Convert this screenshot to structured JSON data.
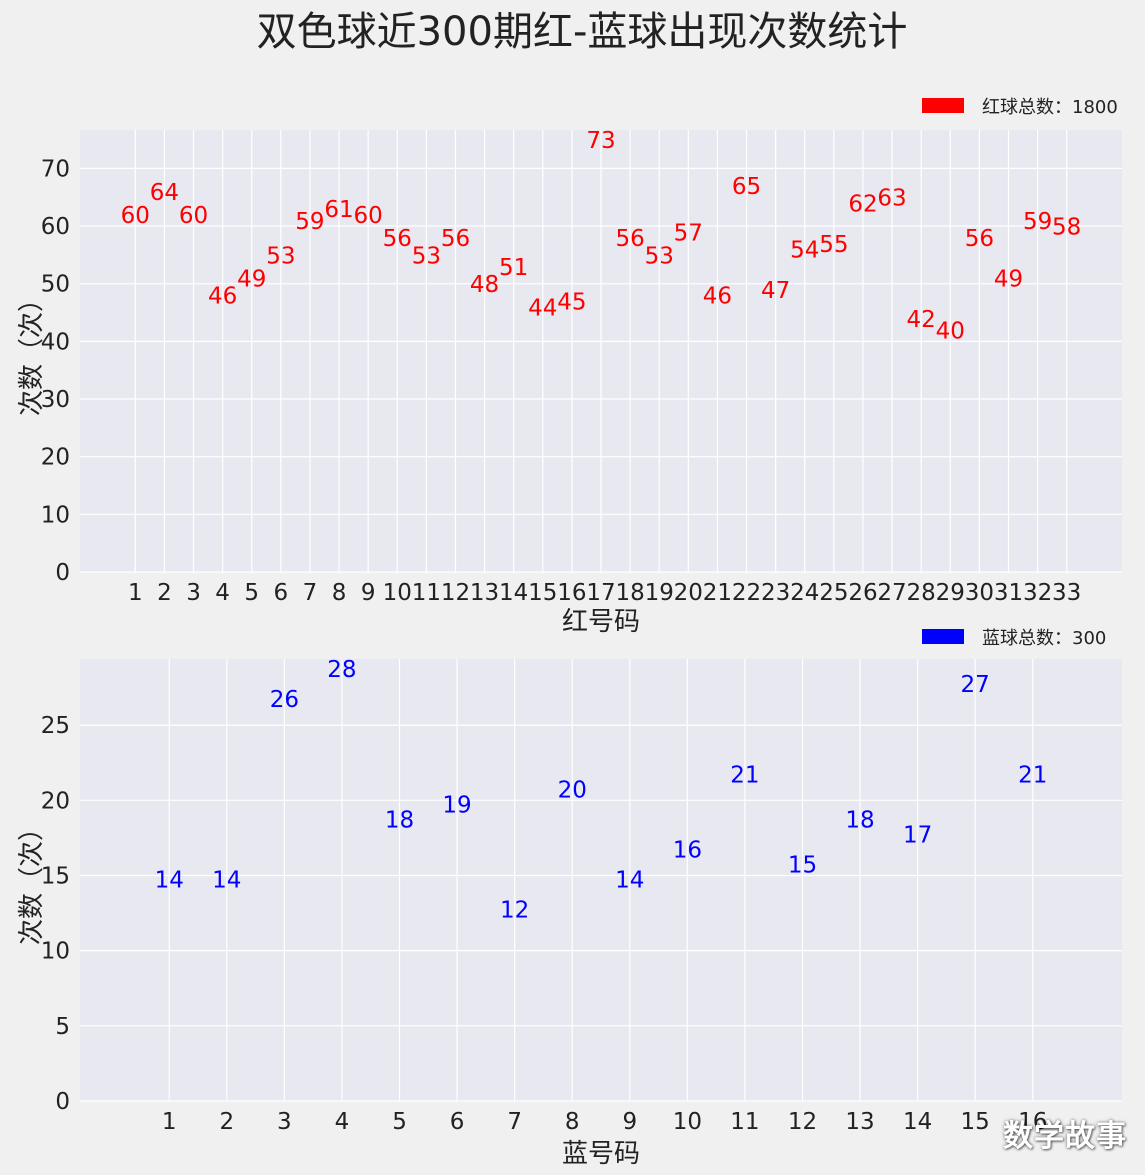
{
  "title": "双色球近300期红-蓝球出现次数统计",
  "watermark": "数学故事",
  "chart_data": [
    {
      "type": "bar",
      "color": "#ff0000",
      "label_color": "#ff0000",
      "categories": [
        "1",
        "2",
        "3",
        "4",
        "5",
        "6",
        "7",
        "8",
        "9",
        "10",
        "11",
        "12",
        "13",
        "14",
        "15",
        "16",
        "17",
        "18",
        "19",
        "20",
        "21",
        "22",
        "23",
        "24",
        "25",
        "26",
        "27",
        "28",
        "29",
        "30",
        "31",
        "32",
        "33"
      ],
      "series": [
        {
          "name": "红球总数：1800",
          "values": [
            60,
            64,
            60,
            46,
            49,
            53,
            59,
            61,
            60,
            56,
            53,
            56,
            48,
            51,
            44,
            45,
            73,
            56,
            53,
            57,
            46,
            65,
            47,
            54,
            55,
            62,
            63,
            42,
            40,
            56,
            49,
            59,
            58
          ]
        }
      ],
      "xlabel": "红号码",
      "ylabel": "次数（次）",
      "ylim": [
        0,
        76.65
      ],
      "yticks": [
        0,
        10,
        20,
        30,
        40,
        50,
        60,
        70
      ],
      "grid": true,
      "legend_position": "top-right"
    },
    {
      "type": "bar",
      "color": "#0000ff",
      "label_color": "#0000ff",
      "categories": [
        "1",
        "2",
        "3",
        "4",
        "5",
        "6",
        "7",
        "8",
        "9",
        "10",
        "11",
        "12",
        "13",
        "14",
        "15",
        "16"
      ],
      "series": [
        {
          "name": "蓝球总数：300",
          "values": [
            14,
            14,
            26,
            28,
            18,
            19,
            12,
            20,
            14,
            16,
            21,
            15,
            18,
            17,
            27,
            21
          ]
        }
      ],
      "xlabel": "蓝号码",
      "ylabel": "次数（次）",
      "ylim": [
        0,
        29.4
      ],
      "yticks": [
        0,
        5,
        10,
        15,
        20,
        25
      ],
      "grid": true,
      "legend_position": "top-right"
    }
  ]
}
